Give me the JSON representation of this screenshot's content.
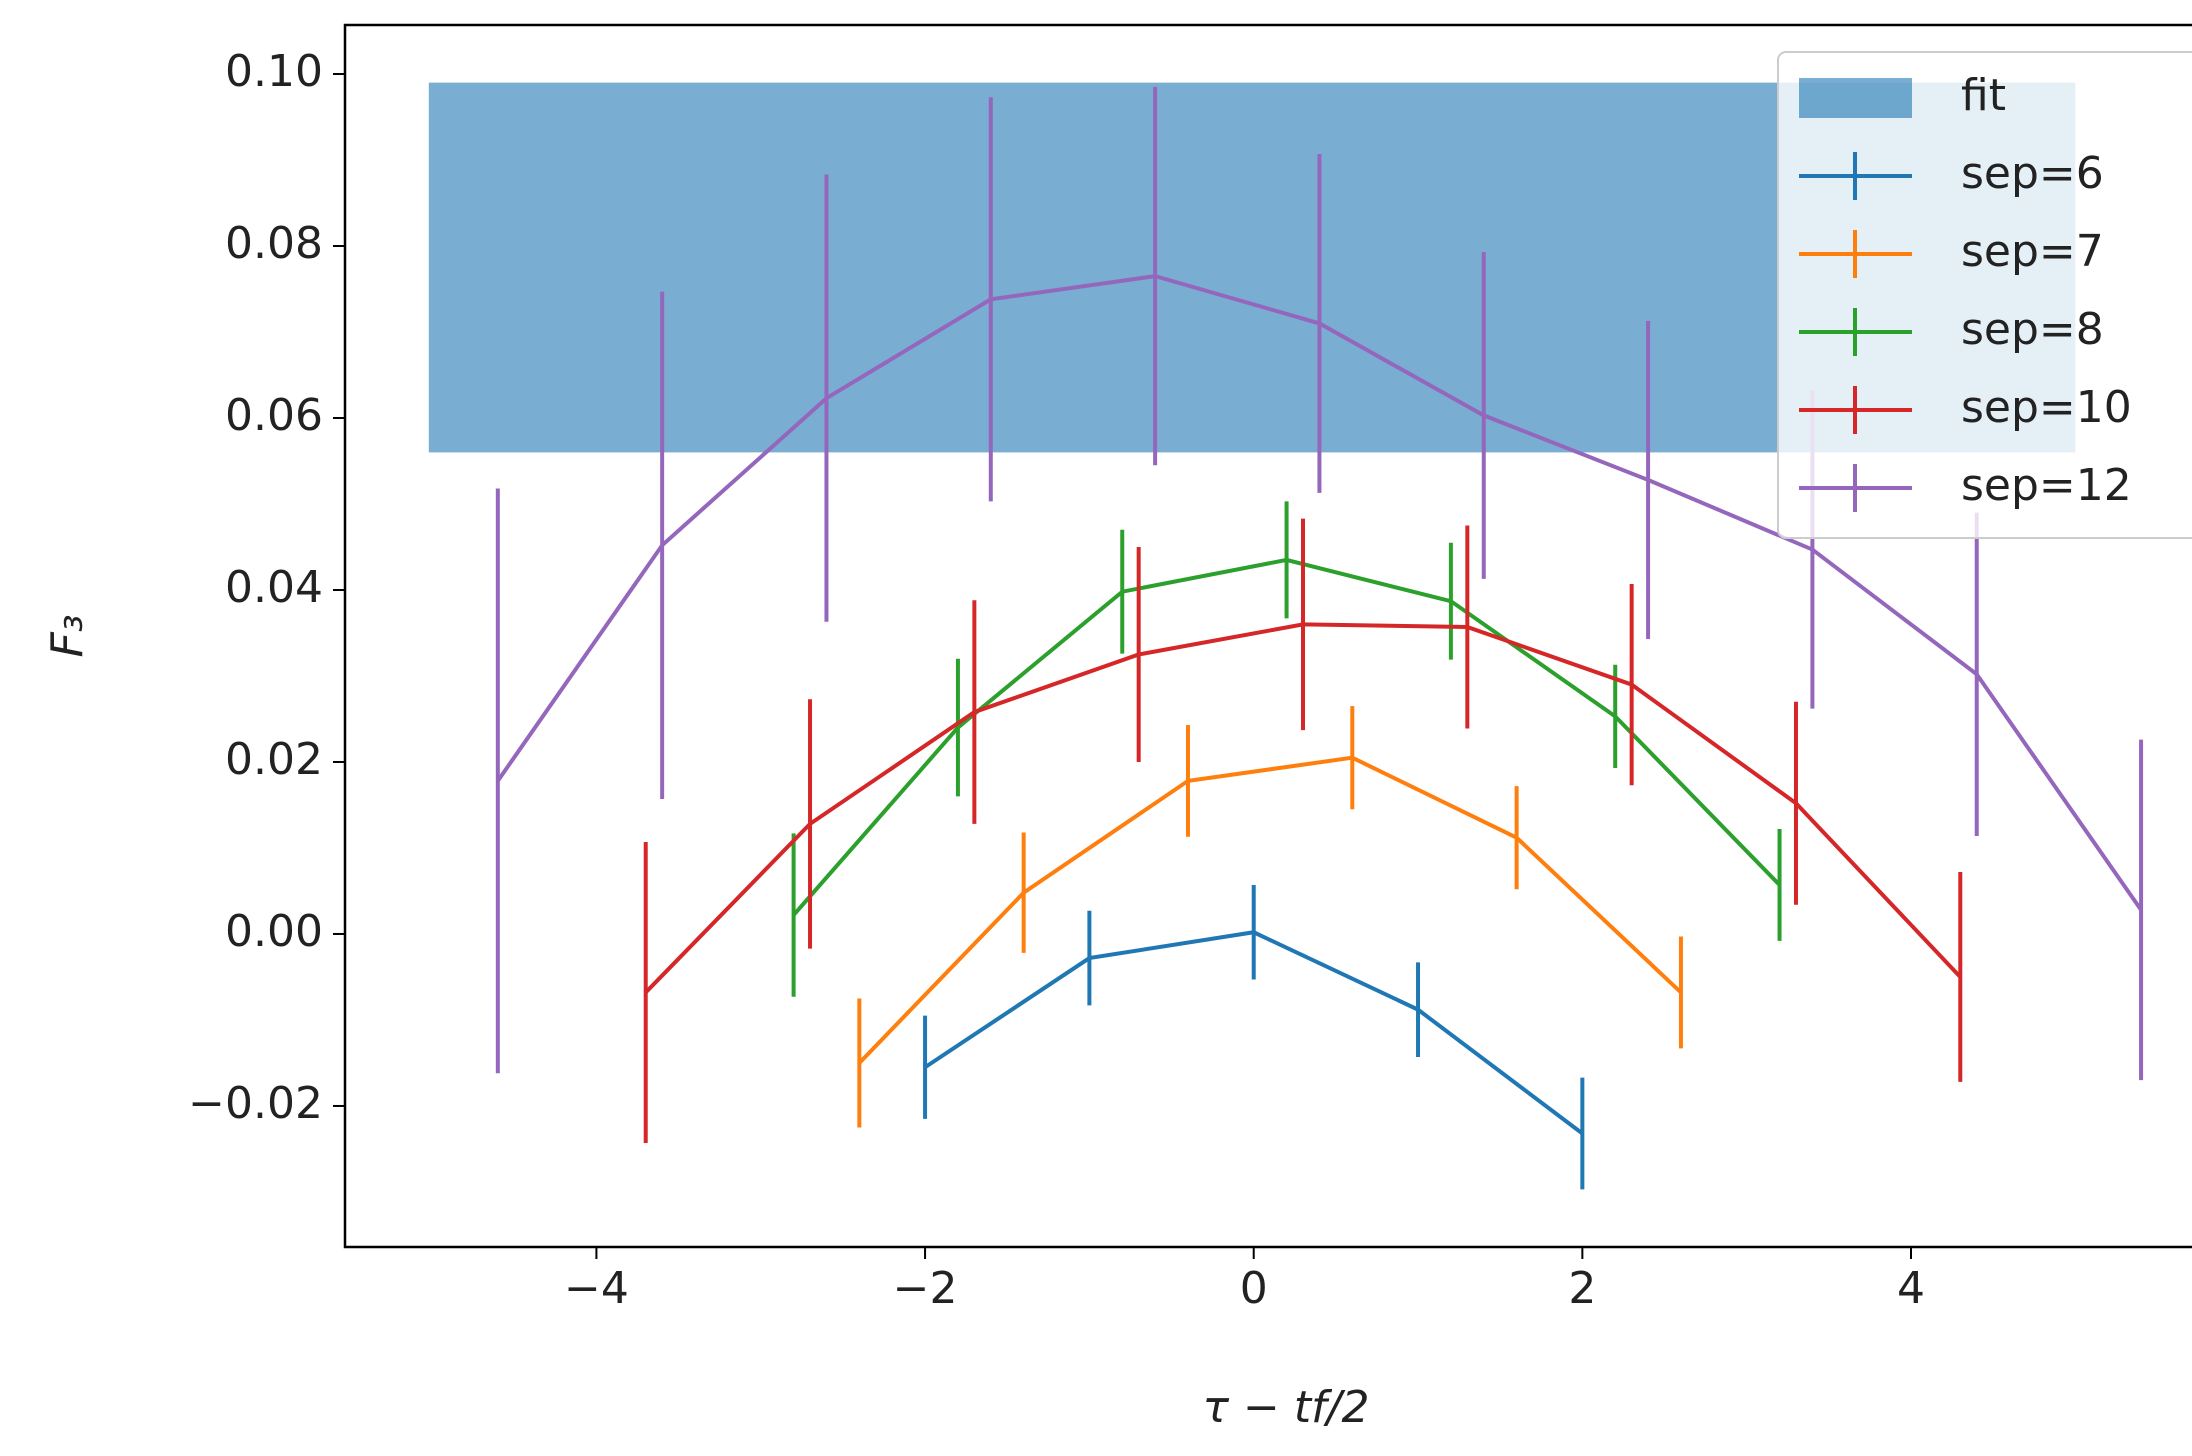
{
  "chart_data": {
    "type": "errorbar",
    "xlabel": "τ − tf/2",
    "ylabel": "F₃",
    "xlim": [
      -5.53,
      5.71
    ],
    "ylim": [
      -0.0364,
      0.1057
    ],
    "xticks": [
      {
        "value": -4,
        "label": "−4"
      },
      {
        "value": -2,
        "label": "−2"
      },
      0,
      2,
      4
    ],
    "yticks": [
      {
        "value": -0.02,
        "label": "−0.02"
      },
      {
        "value": 0,
        "label": "0.00"
      },
      {
        "value": 0.02,
        "label": "0.02"
      },
      {
        "value": 0.04,
        "label": "0.04"
      },
      {
        "value": 0.06,
        "label": "0.06"
      },
      {
        "value": 0.08,
        "label": "0.08"
      },
      {
        "value": 0.1,
        "label": "0.10"
      }
    ],
    "grid": false,
    "legend": "upper right",
    "band": {
      "name": "fit",
      "color": "#1f77b4",
      "x": [
        -5.02,
        5.0
      ],
      "y": [
        0.056,
        0.099
      ]
    },
    "series": [
      {
        "name": "sep=6",
        "color": "#1f77b4",
        "x": [
          -2,
          -1,
          0,
          1,
          2
        ],
        "values": [
          -0.0155,
          -0.0028,
          0.0002,
          -0.0088,
          -0.0232
        ],
        "errors": [
          0.006,
          0.0055,
          0.0055,
          0.0055,
          0.0065
        ]
      },
      {
        "name": "sep=7",
        "color": "#ff7f0e",
        "x": [
          -2.4,
          -1.4,
          -0.4,
          0.6,
          1.6,
          2.6
        ],
        "values": [
          -0.015,
          0.0048,
          0.0178,
          0.0205,
          0.0112,
          -0.0068
        ],
        "errors": [
          0.0075,
          0.007,
          0.0065,
          0.006,
          0.006,
          0.0065
        ]
      },
      {
        "name": "sep=8",
        "color": "#2ca02c",
        "x": [
          -2.8,
          -1.8,
          -0.8,
          0.2,
          1.2,
          2.2,
          3.2
        ],
        "values": [
          0.0022,
          0.024,
          0.0398,
          0.0435,
          0.0387,
          0.0253,
          0.0057
        ],
        "errors": [
          0.0095,
          0.008,
          0.0072,
          0.0068,
          0.0068,
          0.006,
          0.0065
        ]
      },
      {
        "name": "sep=10",
        "color": "#d62728",
        "x": [
          -3.7,
          -2.7,
          -1.7,
          -0.7,
          0.3,
          1.3,
          2.3,
          3.3,
          4.3
        ],
        "values": [
          -0.0068,
          0.0128,
          0.0258,
          0.0325,
          0.036,
          0.0357,
          0.029,
          0.0152,
          -0.005
        ],
        "errors": [
          0.0175,
          0.0145,
          0.013,
          0.0125,
          0.0123,
          0.0118,
          0.0117,
          0.0118,
          0.0122
        ]
      },
      {
        "name": "sep=12",
        "color": "#9467bd",
        "x": [
          -4.6,
          -3.6,
          -2.6,
          -1.6,
          -0.6,
          0.4,
          1.4,
          2.4,
          3.4,
          4.4,
          5.4
        ],
        "values": [
          0.0178,
          0.0452,
          0.0623,
          0.0738,
          0.0765,
          0.071,
          0.0603,
          0.0528,
          0.0447,
          0.0302,
          0.0028
        ],
        "errors": [
          0.034,
          0.0295,
          0.026,
          0.0235,
          0.022,
          0.0197,
          0.019,
          0.0185,
          0.0185,
          0.0188,
          0.0198
        ]
      }
    ]
  }
}
